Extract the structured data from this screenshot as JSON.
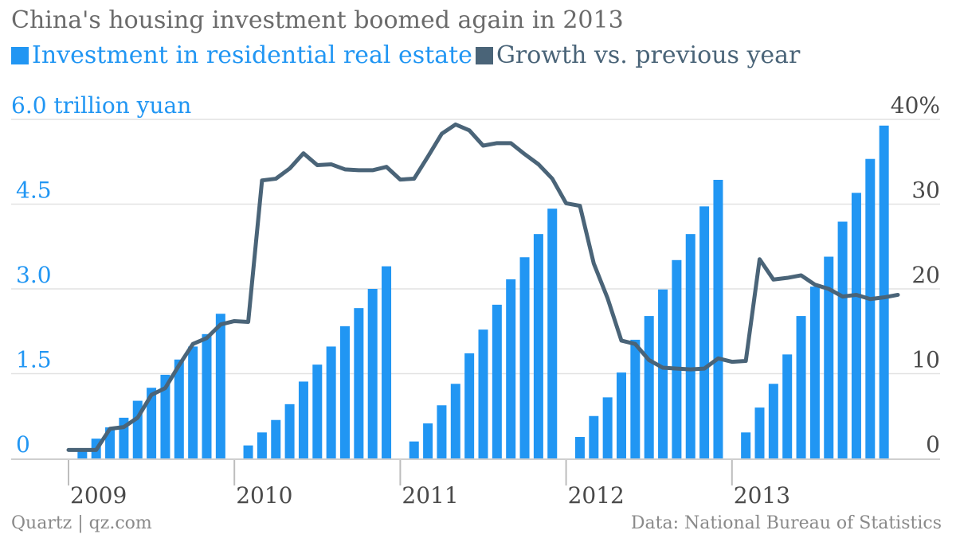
{
  "chart_data": {
    "type": "bar",
    "title": "China's housing investment boomed again in 2013",
    "series": [
      {
        "name": "Investment in residential real estate",
        "kind": "bar",
        "axis": "left",
        "color": "#2196f3",
        "values": [
          null,
          0.12,
          0.35,
          0.55,
          0.72,
          1.02,
          1.25,
          1.48,
          1.75,
          1.98,
          2.2,
          2.56,
          null,
          0.23,
          0.46,
          0.68,
          0.96,
          1.36,
          1.66,
          1.98,
          2.34,
          2.66,
          3.0,
          3.4,
          null,
          0.3,
          0.62,
          0.94,
          1.32,
          1.86,
          2.28,
          2.72,
          3.17,
          3.56,
          3.97,
          4.42,
          null,
          0.38,
          0.75,
          1.08,
          1.52,
          2.1,
          2.52,
          2.99,
          3.51,
          3.97,
          4.46,
          4.93,
          null,
          0.46,
          0.9,
          1.32,
          1.84,
          2.52,
          3.04,
          3.57,
          4.19,
          4.7,
          5.3,
          5.89
        ]
      },
      {
        "name": "Growth vs. previous year",
        "kind": "line",
        "axis": "right",
        "color": "#4a6478",
        "values": [
          1.0,
          1.0,
          1.0,
          3.5,
          3.7,
          4.8,
          7.5,
          8.3,
          11.0,
          13.5,
          14.2,
          15.8,
          16.2,
          16.1,
          32.8,
          33.0,
          34.2,
          36.0,
          34.6,
          34.7,
          34.1,
          34.0,
          34.0,
          34.4,
          32.9,
          33.0,
          35.6,
          38.3,
          39.4,
          38.7,
          36.9,
          37.2,
          37.2,
          35.9,
          34.7,
          33.0,
          30.1,
          29.8,
          23.0,
          18.9,
          13.9,
          13.5,
          11.6,
          10.7,
          10.6,
          10.5,
          10.6,
          11.8,
          11.4,
          11.5,
          23.5,
          21.1,
          21.3,
          21.6,
          20.5,
          20.0,
          19.1,
          19.3,
          18.8,
          19.0,
          19.3
        ]
      }
    ],
    "x_labels": [
      "2009",
      "2010",
      "2011",
      "2012",
      "2013"
    ],
    "ylabel_left": "6.0 trillion yuan",
    "ylim_left": [
      0,
      6.0
    ],
    "yticks_left": [
      "0",
      "1.5",
      "3.0",
      "4.5"
    ],
    "ylim_right": [
      0,
      40
    ],
    "yticks_right": [
      "0",
      "10",
      "20",
      "30",
      "40%"
    ],
    "grid": true,
    "legend_position": "top-left"
  },
  "footer": {
    "source_left": "Quartz | qz.com",
    "source_right": "Data: National Bureau of Statistics"
  },
  "colors": {
    "bar": "#2196f3",
    "line": "#4a6478",
    "axis_left_text": "#2196f3",
    "axis_right_text": "#4a4a4a",
    "title_text": "#6b6b6b",
    "grid": "#e2e2e2"
  }
}
